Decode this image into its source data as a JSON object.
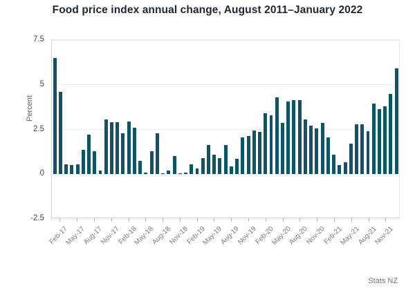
{
  "title": "Food price index annual change, August 2011–January 2022",
  "attribution": "Stats NZ",
  "chart_data": {
    "type": "bar",
    "title": "Food price index annual change, August 2011–January 2022",
    "xlabel": "",
    "ylabel": "Percent",
    "ylim": [
      -2.5,
      7.5
    ],
    "yticks": [
      7.5,
      5,
      2.5,
      0,
      -2.5
    ],
    "grid": true,
    "legend": "none",
    "bar_color": "#0d5468",
    "n_bars": 61,
    "x_period": "monthly, Jan-17 to Jan-22 (visible window of longer series)",
    "values": [
      6.5,
      4.6,
      0.55,
      0.5,
      0.55,
      1.35,
      2.2,
      1.3,
      0.2,
      3.05,
      2.9,
      2.9,
      2.3,
      2.95,
      2.6,
      0.75,
      0.1,
      1.3,
      2.3,
      0.05,
      0.2,
      1.0,
      0.05,
      0.1,
      0.55,
      0.3,
      0.9,
      1.65,
      1.1,
      0.9,
      1.65,
      0.45,
      0.85,
      2.05,
      2.15,
      2.45,
      2.35,
      3.4,
      3.3,
      4.3,
      2.85,
      4.05,
      4.15,
      4.15,
      3.05,
      2.7,
      2.55,
      2.85,
      2.05,
      1.1,
      0.5,
      0.65,
      1.7,
      2.8,
      2.8,
      2.4,
      3.95,
      3.65,
      3.8,
      4.5,
      5.9
    ],
    "x_tick_labels": [
      "Feb-17",
      "May-17",
      "Aug-17",
      "Nov-17",
      "Feb-18",
      "May-18",
      "Aug-18",
      "Nov-18",
      "Feb-19",
      "May-19",
      "Aug-19",
      "Nov-19",
      "Feb-20",
      "May-20",
      "Aug-20",
      "Nov-20",
      "Feb-21",
      "May-21",
      "Aug-21",
      "Nov-21"
    ],
    "x_tick_start_index": 1,
    "x_tick_every": 3,
    "grid_color": "#e9ecee",
    "axis_text_color": "#767b83"
  }
}
